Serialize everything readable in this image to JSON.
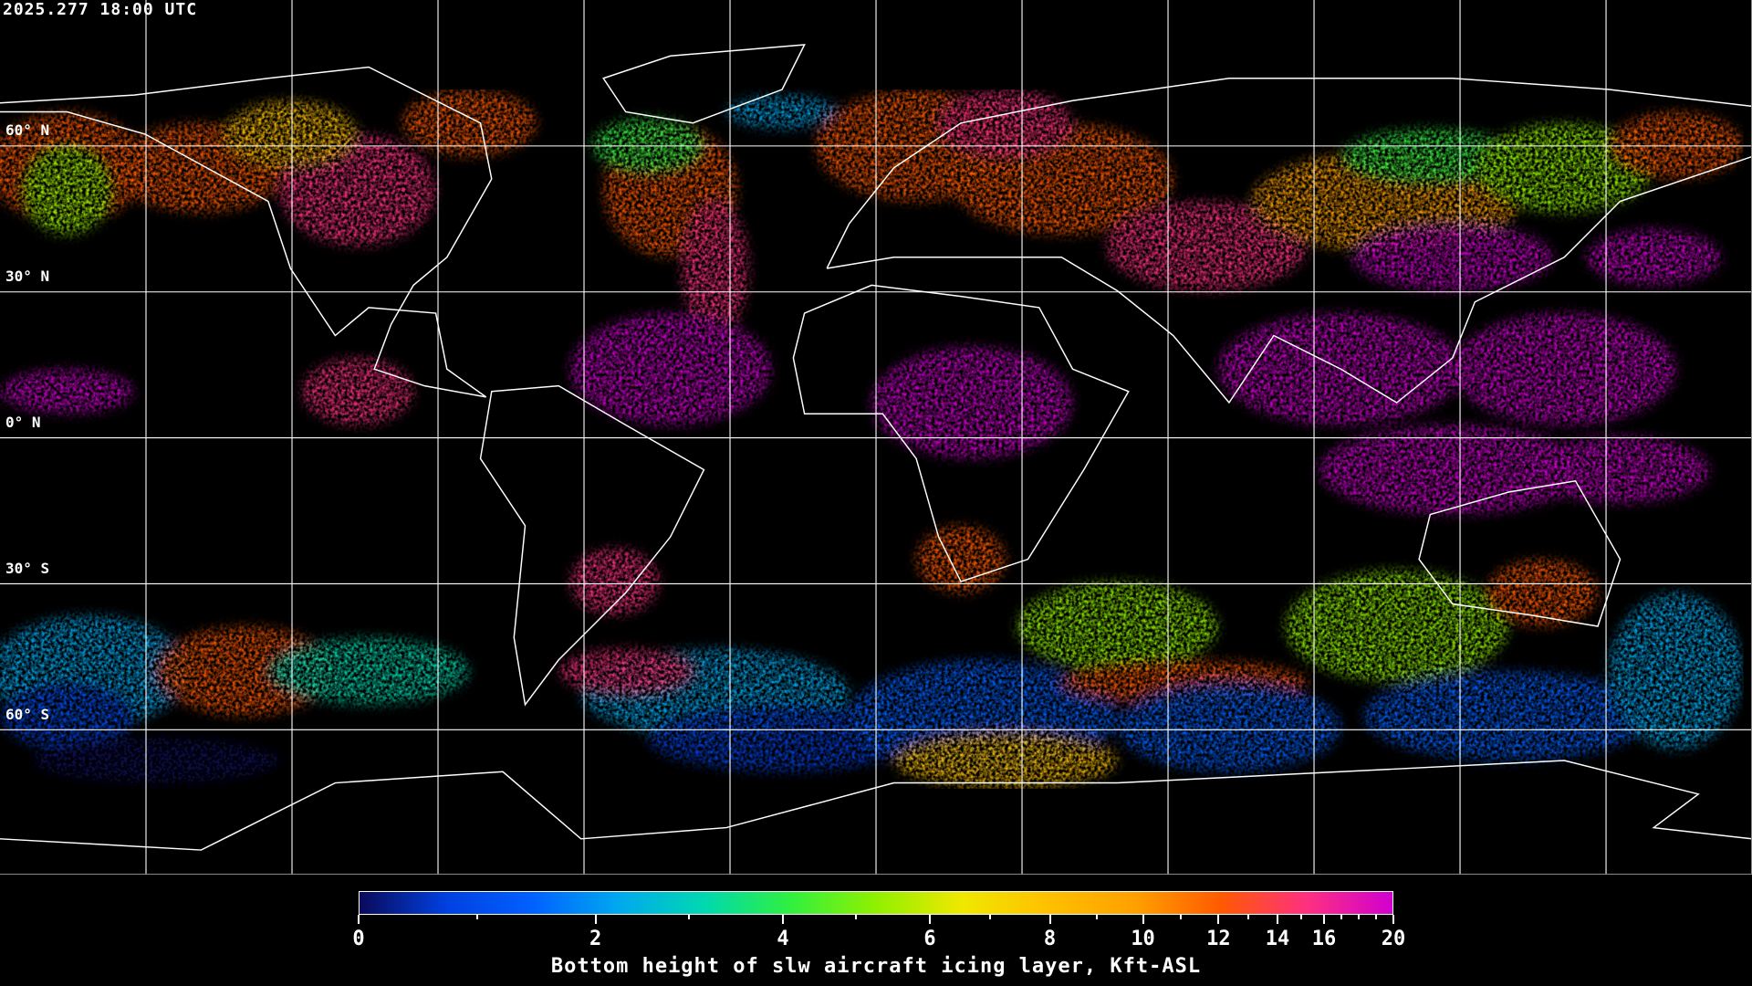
{
  "header": {
    "timestamp": "2025.277 18:00 UTC"
  },
  "map": {
    "projection": "equirectangular",
    "latitude_labels": [
      "60° N",
      "30° N",
      "0° N",
      "30° S",
      "60° S"
    ],
    "gridline_color": "#ffffff",
    "coastline_color": "#ffffff",
    "background_color": "#000000"
  },
  "colorbar": {
    "title": "Bottom height of slw aircraft icing layer, Kft-ASL",
    "min": 0,
    "max": 20,
    "tick_labels": [
      "0",
      "2",
      "4",
      "6",
      "8",
      "10",
      "12",
      "14",
      "16",
      "20"
    ],
    "minor_ticks": [
      1,
      3,
      5,
      7,
      9,
      11,
      13,
      15,
      17,
      18,
      19
    ],
    "colors": [
      "#0a0a5a",
      "#0040e0",
      "#0060ff",
      "#00a8f0",
      "#00d8b0",
      "#30f040",
      "#90f000",
      "#f0e800",
      "#ffc000",
      "#ffa000",
      "#ff5a00",
      "#ff3080",
      "#d000d0"
    ]
  }
}
